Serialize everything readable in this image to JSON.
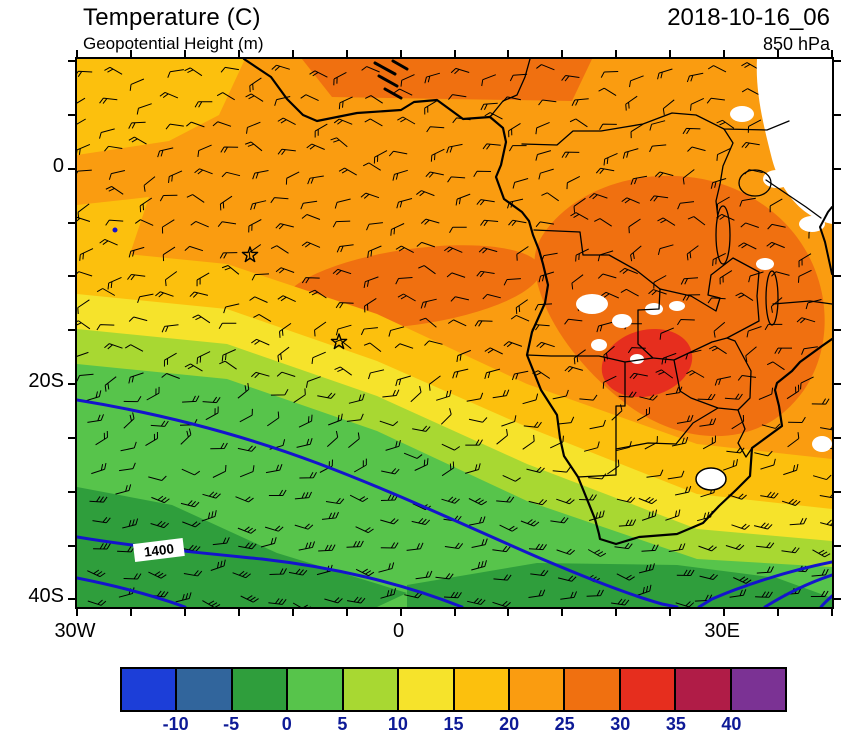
{
  "header": {
    "title": "Temperature (C)",
    "subtitle": "Geopotential Height (m)",
    "datetime": "2018-10-16_06",
    "level": "850 hPa"
  },
  "map": {
    "contour_label": "1400",
    "height_contour_color": "#1414cc",
    "coast_color": "#000000"
  },
  "axes": {
    "y_labels": [
      {
        "text": "0",
        "lat": 0
      },
      {
        "text": "20S",
        "lat": -20
      },
      {
        "text": "40S",
        "lat": -40
      }
    ],
    "x_labels": [
      {
        "text": "30W",
        "lon": -30
      },
      {
        "text": "0",
        "lon": 0
      },
      {
        "text": "30E",
        "lon": 30
      }
    ]
  },
  "colorbar": {
    "colors": [
      "#1c3ed8",
      "#31659c",
      "#2f9e3c",
      "#57c44b",
      "#a8d832",
      "#f6e32b",
      "#fcc00d",
      "#fa9c10",
      "#f07010",
      "#e62e1e",
      "#b01c47",
      "#7b3294"
    ],
    "labels": [
      "-10",
      "-5",
      "0",
      "5",
      "10",
      "15",
      "20",
      "25",
      "30",
      "35",
      "40"
    ],
    "label_color": "#0d1a96"
  },
  "chart_data": {
    "type": "heatmap",
    "title": "Temperature (C)",
    "overlay_contours": "Geopotential Height (m)",
    "valid_time": "2018-10-16_06",
    "level": "850 hPa",
    "projection": "latlon",
    "region": {
      "lon_min": -30,
      "lon_max": 40,
      "lat_min": -41,
      "lat_max": 10
    },
    "x_tick_labels": [
      "30W",
      "0",
      "30E"
    ],
    "y_tick_labels": [
      "0",
      "20S",
      "40S"
    ],
    "colorbar_boundaries_C": [
      -10,
      -5,
      0,
      5,
      10,
      15,
      20,
      25,
      30,
      35,
      40
    ],
    "colorbar_colors": [
      "#1c3ed8",
      "#31659c",
      "#2f9e3c",
      "#57c44b",
      "#a8d832",
      "#f6e32b",
      "#fcc00d",
      "#fa9c10",
      "#f07010",
      "#e62e1e",
      "#b01c47",
      "#7b3294"
    ],
    "labeled_height_contours_m": [
      1400
    ],
    "wind_overlay": "barbs",
    "storm_markers": [
      {
        "lon": -14.0,
        "lat": -8.0
      },
      {
        "lon": -5.7,
        "lat": -16.1
      }
    ],
    "notable_features": [
      "Most of tropical Africa and adjacent Atlantic in 20-25C orange shading",
      "Warm 25-30C band over Angola/Zambia/Zimbabwe with 30-35C red core near 26E 18S",
      "Temperatures decrease southward through 15-20, 10-15, 5-10 and 0-5C bands toward 40S",
      "Blue geopotential height contours in the far south, 1400 m contour labeled southwest of the Cape",
      "White areas of masked high terrain over East African highlands, Angolan plateau and Lesotho"
    ]
  }
}
